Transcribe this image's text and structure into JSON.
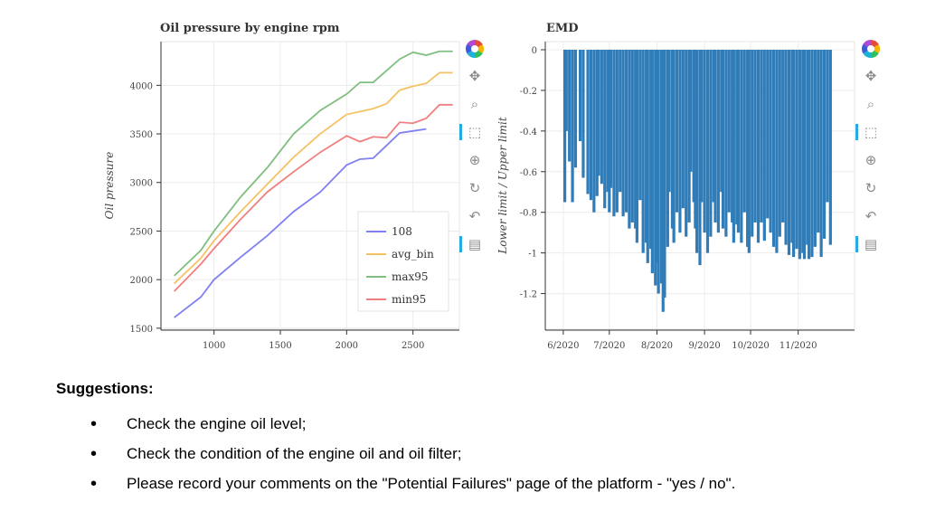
{
  "chart_data": [
    {
      "type": "line",
      "title": "Oil pressure by engine rpm",
      "xlabel": "",
      "ylabel": "Oil pressure",
      "xlim": [
        600,
        2850
      ],
      "ylim": [
        1480,
        4450
      ],
      "xticks": [
        1000,
        1500,
        2000,
        2500
      ],
      "yticks": [
        1500,
        2000,
        2500,
        3000,
        3500,
        4000
      ],
      "grid": true,
      "legend_position": "bottom-right",
      "series": [
        {
          "name": "108",
          "color": "#8080f0",
          "x": [
            700,
            900,
            1000,
            1200,
            1400,
            1600,
            1800,
            2000,
            2100,
            2200,
            2300,
            2400,
            2500,
            2600
          ],
          "y": [
            1610,
            1820,
            2000,
            2230,
            2450,
            2700,
            2900,
            3180,
            3240,
            3250,
            3380,
            3510,
            3530,
            3550
          ]
        },
        {
          "name": "avg_bin",
          "color": "#f5c264",
          "x": [
            700,
            900,
            1000,
            1200,
            1400,
            1600,
            1800,
            2000,
            2100,
            2200,
            2300,
            2400,
            2500,
            2600,
            2700,
            2800
          ],
          "y": [
            1960,
            2220,
            2400,
            2700,
            2980,
            3260,
            3500,
            3700,
            3730,
            3760,
            3810,
            3950,
            3990,
            4020,
            4130,
            4130
          ]
        },
        {
          "name": "max95",
          "color": "#7fbf7f",
          "x": [
            700,
            900,
            1000,
            1200,
            1400,
            1600,
            1800,
            2000,
            2100,
            2200,
            2300,
            2400,
            2500,
            2600,
            2700,
            2800
          ],
          "y": [
            2040,
            2300,
            2500,
            2850,
            3150,
            3500,
            3740,
            3910,
            4030,
            4030,
            4150,
            4270,
            4340,
            4310,
            4350,
            4350
          ]
        },
        {
          "name": "min95",
          "color": "#f07f7f",
          "x": [
            700,
            900,
            1000,
            1200,
            1400,
            1600,
            1800,
            2000,
            2100,
            2200,
            2300,
            2400,
            2500,
            2600,
            2700,
            2800
          ],
          "y": [
            1880,
            2160,
            2320,
            2620,
            2900,
            3110,
            3310,
            3480,
            3420,
            3470,
            3460,
            3620,
            3610,
            3660,
            3800,
            3800
          ]
        }
      ]
    },
    {
      "type": "bar",
      "title": "EMD",
      "xlabel": "",
      "ylabel": "Lower limit / Upper limit",
      "ylim": [
        -1.38,
        0.04
      ],
      "yticks": [
        0,
        -0.2,
        -0.4,
        -0.6,
        -0.8,
        -1,
        -1.2
      ],
      "xticks": [
        "6/2020",
        "7/2020",
        "8/2020",
        "9/2020",
        "10/2020",
        "11/2020"
      ],
      "x_range": [
        "2020-06-01",
        "2020-11-30"
      ],
      "bar_color": "#2f7cb8",
      "grid": true,
      "points": [
        [
          "2020-06-02",
          -0.75
        ],
        [
          "2020-06-03",
          -0.4
        ],
        [
          "2020-06-05",
          -0.55
        ],
        [
          "2020-06-07",
          -0.75
        ],
        [
          "2020-06-09",
          -0.58
        ],
        [
          "2020-06-12",
          -0.45
        ],
        [
          "2020-06-14",
          -0.63
        ],
        [
          "2020-06-17",
          -0.71
        ],
        [
          "2020-06-19",
          -0.74
        ],
        [
          "2020-06-21",
          -0.8
        ],
        [
          "2020-06-23",
          -0.72
        ],
        [
          "2020-06-24",
          -0.62
        ],
        [
          "2020-06-26",
          -0.66
        ],
        [
          "2020-06-28",
          -0.78
        ],
        [
          "2020-06-30",
          -0.7
        ],
        [
          "2020-07-01",
          -0.8
        ],
        [
          "2020-07-02",
          -0.68
        ],
        [
          "2020-07-04",
          -0.82
        ],
        [
          "2020-07-06",
          -0.8
        ],
        [
          "2020-07-08",
          -0.7
        ],
        [
          "2020-07-10",
          -0.82
        ],
        [
          "2020-07-12",
          -0.8
        ],
        [
          "2020-07-14",
          -0.88
        ],
        [
          "2020-07-16",
          -0.85
        ],
        [
          "2020-07-18",
          -0.88
        ],
        [
          "2020-07-19",
          -0.95
        ],
        [
          "2020-07-21",
          -0.74
        ],
        [
          "2020-07-23",
          -1.0
        ],
        [
          "2020-07-25",
          -0.95
        ],
        [
          "2020-07-26",
          -1.05
        ],
        [
          "2020-07-28",
          -0.98
        ],
        [
          "2020-07-29",
          -1.1
        ],
        [
          "2020-07-31",
          -1.16
        ],
        [
          "2020-08-01",
          -1.05
        ],
        [
          "2020-08-02",
          -1.2
        ],
        [
          "2020-08-04",
          -1.15
        ],
        [
          "2020-08-05",
          -1.29
        ],
        [
          "2020-08-06",
          -1.22
        ],
        [
          "2020-08-08",
          -0.97
        ],
        [
          "2020-08-09",
          -0.7
        ],
        [
          "2020-08-11",
          -0.88
        ],
        [
          "2020-08-12",
          -0.95
        ],
        [
          "2020-08-14",
          -0.8
        ],
        [
          "2020-08-16",
          -0.9
        ],
        [
          "2020-08-18",
          -0.78
        ],
        [
          "2020-08-20",
          -0.92
        ],
        [
          "2020-08-22",
          -0.85
        ],
        [
          "2020-08-23",
          -0.6
        ],
        [
          "2020-08-25",
          -0.75
        ],
        [
          "2020-08-26",
          -0.88
        ],
        [
          "2020-08-27",
          -1.0
        ],
        [
          "2020-08-29",
          -1.06
        ],
        [
          "2020-08-30",
          -0.75
        ],
        [
          "2020-09-01",
          -0.9
        ],
        [
          "2020-09-03",
          -1.0
        ],
        [
          "2020-09-05",
          -0.92
        ],
        [
          "2020-09-07",
          -0.75
        ],
        [
          "2020-09-08",
          -0.85
        ],
        [
          "2020-09-10",
          -0.9
        ],
        [
          "2020-09-12",
          -0.7
        ],
        [
          "2020-09-13",
          -0.88
        ],
        [
          "2020-09-15",
          -0.92
        ],
        [
          "2020-09-17",
          -0.8
        ],
        [
          "2020-09-19",
          -0.85
        ],
        [
          "2020-09-20",
          -0.95
        ],
        [
          "2020-09-22",
          -0.86
        ],
        [
          "2020-09-23",
          -0.9
        ],
        [
          "2020-09-25",
          -0.95
        ],
        [
          "2020-09-27",
          -0.8
        ],
        [
          "2020-09-29",
          -0.97
        ],
        [
          "2020-09-30",
          -1.0
        ],
        [
          "2020-10-02",
          -0.92
        ],
        [
          "2020-10-04",
          -0.85
        ],
        [
          "2020-10-06",
          -0.95
        ],
        [
          "2020-10-08",
          -0.85
        ],
        [
          "2020-10-10",
          -0.94
        ],
        [
          "2020-10-12",
          -0.83
        ],
        [
          "2020-10-14",
          -0.9
        ],
        [
          "2020-10-16",
          -0.97
        ],
        [
          "2020-10-18",
          -1.0
        ],
        [
          "2020-10-20",
          -0.92
        ],
        [
          "2020-10-22",
          -0.85
        ],
        [
          "2020-10-24",
          -0.96
        ],
        [
          "2020-10-26",
          -1.01
        ],
        [
          "2020-10-28",
          -0.95
        ],
        [
          "2020-10-29",
          -1.02
        ],
        [
          "2020-10-31",
          -0.98
        ],
        [
          "2020-11-02",
          -1.03
        ],
        [
          "2020-11-04",
          -1.0
        ],
        [
          "2020-11-05",
          -1.03
        ],
        [
          "2020-11-07",
          -0.96
        ],
        [
          "2020-11-08",
          -1.03
        ],
        [
          "2020-11-10",
          -1.02
        ],
        [
          "2020-11-12",
          -0.97
        ],
        [
          "2020-11-14",
          -0.9
        ],
        [
          "2020-11-16",
          -1.02
        ],
        [
          "2020-11-18",
          -0.93
        ],
        [
          "2020-11-20",
          -0.75
        ],
        [
          "2020-11-22",
          -0.96
        ]
      ]
    }
  ],
  "suggestions": {
    "heading": "Suggestions:",
    "items": [
      "Check the engine oil level;",
      "Check the condition of the engine oil and oil filter;",
      "Please record your comments on the \"Potential Failures\" page of the platform - \"yes / no\"."
    ]
  },
  "toolbar_icons": [
    "bokeh-logo-icon",
    "pan-icon",
    "box-zoom-icon",
    "box-select-icon",
    "wheel-zoom-icon",
    "reset-icon",
    "undo-icon",
    "save-icon"
  ],
  "colors": {
    "accent": "#26aae1",
    "bar": "#2f7cb8"
  }
}
